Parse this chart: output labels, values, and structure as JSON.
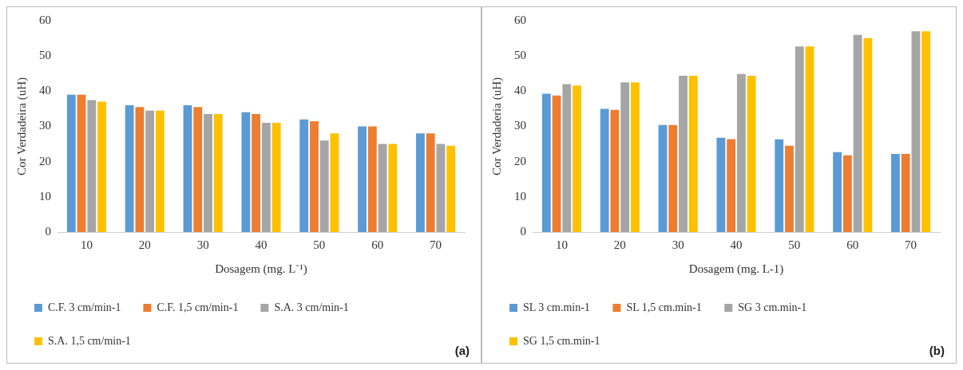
{
  "chart_data": [
    {
      "type": "bar",
      "xlabel": "Dosagem (mg. L⁻¹)",
      "ylabel": "Cor Verdadeira (uH)",
      "categories": [
        "10",
        "20",
        "30",
        "40",
        "50",
        "60",
        "70"
      ],
      "ylim": [
        0,
        60
      ],
      "yticks": [
        0,
        10,
        20,
        30,
        40,
        50,
        60
      ],
      "grid": false,
      "legend": "bottom",
      "annotations": [
        "(a)"
      ],
      "series": [
        {
          "name": "C.F. 3 cm/min-1",
          "color": "#5b9bd5",
          "values": [
            39,
            36,
            36,
            34,
            32,
            30,
            28
          ]
        },
        {
          "name": "C.F. 1,5 cm/min-1",
          "color": "#ed7d31",
          "values": [
            39,
            35.5,
            35.5,
            33.5,
            31.5,
            30,
            28
          ]
        },
        {
          "name": "S.A. 3 cm/min-1",
          "color": "#a5a5a5",
          "values": [
            37.5,
            34.5,
            33.5,
            31,
            26,
            25,
            25
          ]
        },
        {
          "name": "S.A. 1,5 cm/min-1",
          "color": "#ffc000",
          "values": [
            37,
            34.5,
            33.5,
            31,
            28,
            25,
            24.5
          ]
        }
      ]
    },
    {
      "type": "bar",
      "xlabel": "Dosagem (mg. L-1)",
      "ylabel": "Cor Verdaderia (uH)",
      "categories": [
        "10",
        "20",
        "30",
        "40",
        "50",
        "60",
        "70"
      ],
      "ylim": [
        0,
        60
      ],
      "yticks": [
        0,
        10,
        20,
        30,
        40,
        50,
        60
      ],
      "grid": false,
      "legend": "bottom",
      "annotations": [
        "(b)"
      ],
      "series": [
        {
          "name": "SL 3 cm.min-1",
          "color": "#5b9bd5",
          "values": [
            39.3,
            35,
            30.4,
            26.8,
            26.3,
            22.7,
            22.2
          ]
        },
        {
          "name": "SL 1,5 cm.min-1",
          "color": "#ed7d31",
          "values": [
            38.8,
            34.7,
            30.4,
            26.4,
            24.5,
            21.8,
            22.2
          ]
        },
        {
          "name": "SG 3 cm.min-1",
          "color": "#a5a5a5",
          "values": [
            42,
            42.5,
            44.4,
            44.9,
            52.7,
            56,
            57
          ]
        },
        {
          "name": "SG 1,5 cm.min-1",
          "color": "#ffc000",
          "values": [
            41.6,
            42.5,
            44.4,
            44.4,
            52.7,
            55.1,
            57
          ]
        }
      ]
    }
  ]
}
